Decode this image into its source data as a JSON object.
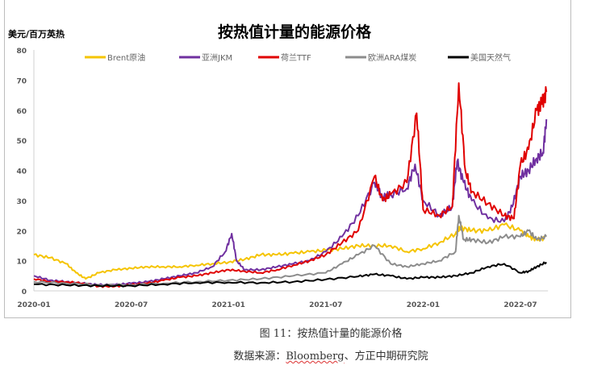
{
  "chart_data": {
    "type": "line",
    "title": "按热值计量的能源价格",
    "ylabel": "美元/百万英热",
    "xlabel": "",
    "ylim": [
      0,
      80
    ],
    "yticks": [
      0,
      10,
      20,
      30,
      40,
      50,
      60,
      70,
      80
    ],
    "xlim_months": [
      0,
      31.6
    ],
    "xticks": [
      {
        "label": "2020-01",
        "m": 0
      },
      {
        "label": "2020-07",
        "m": 6
      },
      {
        "label": "2021-01",
        "m": 12
      },
      {
        "label": "2021-07",
        "m": 18
      },
      {
        "label": "2022-01",
        "m": 24
      },
      {
        "label": "2022-07",
        "m": 30
      }
    ],
    "legend_position": "top",
    "grid": false,
    "series": [
      {
        "name": "Brent原油",
        "color": "#f5c400",
        "x": [
          0,
          1,
          2,
          2.6,
          3.2,
          4,
          5,
          6,
          7,
          8,
          9,
          10,
          11,
          12,
          13,
          14,
          15,
          16,
          17,
          18,
          19,
          20,
          21,
          22,
          23,
          24,
          25,
          26,
          26.3,
          27,
          28,
          29,
          30,
          30.5,
          31,
          31.5
        ],
        "y": [
          12,
          11,
          9,
          6,
          4,
          6,
          7,
          7.5,
          8,
          8,
          8,
          8.5,
          9,
          9.5,
          10.5,
          12,
          12,
          12.5,
          13,
          13.5,
          14,
          15,
          15,
          15,
          13,
          14,
          16,
          19,
          21,
          20,
          20,
          22,
          20,
          18,
          17,
          17.5
        ]
      },
      {
        "name": "亚洲JKM",
        "color": "#7030a0",
        "x": [
          0,
          1,
          2,
          3,
          4,
          5,
          6,
          7,
          8,
          9,
          10,
          11,
          11.8,
          12.2,
          12.5,
          13,
          14,
          15,
          16,
          17,
          18,
          19,
          20,
          21,
          21.5,
          22,
          23,
          23.5,
          24,
          25,
          25.8,
          26.1,
          26.5,
          27,
          28,
          29,
          29.5,
          30,
          30.5,
          31,
          31.4,
          31.6
        ],
        "y": [
          5,
          3.5,
          3,
          2.5,
          2,
          2,
          2.5,
          3,
          4,
          5,
          6,
          8,
          13,
          19,
          10,
          7,
          7,
          8,
          9,
          10,
          13,
          18,
          25,
          36,
          31,
          32,
          34,
          42,
          30,
          25,
          28,
          43,
          36,
          30,
          24,
          23,
          28,
          38,
          40,
          44,
          46,
          57
        ]
      },
      {
        "name": "荷兰TTF",
        "color": "#e00000",
        "x": [
          0,
          1,
          2,
          3,
          4,
          5,
          6,
          7,
          8,
          9,
          10,
          11,
          12,
          13,
          14,
          15,
          16,
          17,
          18,
          19,
          20,
          21,
          21.5,
          22,
          23,
          23.6,
          24,
          25,
          25.8,
          26.2,
          26.6,
          27,
          28,
          29,
          29.6,
          30,
          30.5,
          31,
          31.3,
          31.6
        ],
        "y": [
          4,
          3,
          3,
          2.5,
          1.5,
          1.5,
          2,
          2.5,
          3.5,
          4.5,
          5,
          6,
          7,
          6.5,
          6,
          7,
          8.5,
          10,
          12,
          16,
          20,
          38,
          30,
          32,
          36,
          59,
          27,
          25,
          28,
          69,
          40,
          33,
          29,
          25,
          24,
          42,
          47,
          60,
          62,
          66
        ]
      },
      {
        "name": "欧洲ARA煤炭",
        "color": "#8c8c8c",
        "x": [
          0,
          2,
          4,
          6,
          8,
          10,
          12,
          14,
          16,
          18,
          19,
          20,
          21,
          22,
          23,
          24,
          25,
          26,
          26.2,
          26.5,
          27,
          28,
          29,
          30,
          30.5,
          31,
          31.6
        ],
        "y": [
          3,
          2.5,
          2,
          2,
          2.5,
          3,
          3.5,
          4,
          5,
          6,
          9,
          12,
          15,
          9,
          8,
          9,
          10,
          13,
          25,
          17,
          17,
          16,
          18,
          18,
          20,
          17,
          18
        ]
      },
      {
        "name": "美国天然气",
        "color": "#000000",
        "x": [
          0,
          2,
          4,
          6,
          8,
          10,
          12,
          14,
          16,
          18,
          20,
          21,
          22,
          23,
          24,
          25,
          26,
          27,
          28,
          29,
          30,
          30.5,
          31,
          31.6
        ],
        "y": [
          2.2,
          1.9,
          1.7,
          1.7,
          2.2,
          2.7,
          2.8,
          2.7,
          3,
          3.8,
          4.8,
          5.5,
          5,
          4,
          4.5,
          4.5,
          5,
          6,
          8,
          9,
          6,
          6.5,
          8,
          9.5
        ]
      }
    ]
  },
  "caption": "图 11：按热值计量的能源价格",
  "source_prefix": "数据来源：",
  "source_brand": "Bloomberg",
  "source_suffix": "、方正中期研究院"
}
